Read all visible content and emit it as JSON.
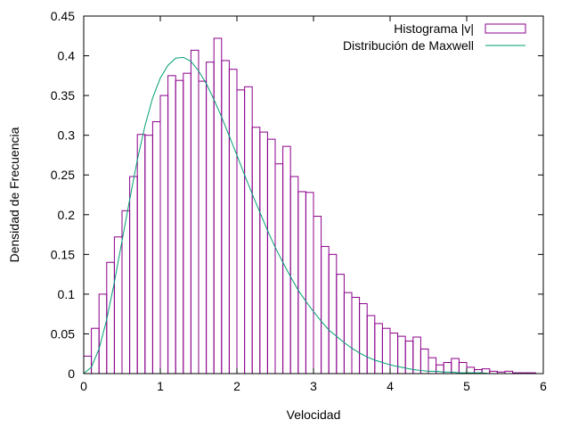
{
  "chart_data": {
    "type": "bar",
    "title": "",
    "xlabel": "Velocidad",
    "ylabel": "Densidad de Frecuencia",
    "xlim": [
      0,
      6
    ],
    "ylim": [
      0,
      0.45
    ],
    "xticks": [
      "0",
      "1",
      "2",
      "3",
      "4",
      "5",
      "6"
    ],
    "yticks": [
      "0",
      "0.05",
      "0.1",
      "0.15",
      "0.2",
      "0.25",
      "0.3",
      "0.35",
      "0.4",
      "0.45"
    ],
    "grid": false,
    "legend_position": "top-right",
    "bin_width": 0.1,
    "series": [
      {
        "name": "Histograma |v|",
        "type": "histogram",
        "color": "#8b008b",
        "bin_starts": [
          0.0,
          0.1,
          0.2,
          0.3,
          0.4,
          0.5,
          0.6,
          0.7,
          0.8,
          0.9,
          1.0,
          1.1,
          1.2,
          1.3,
          1.4,
          1.5,
          1.6,
          1.7,
          1.8,
          1.9,
          2.0,
          2.1,
          2.2,
          2.3,
          2.4,
          2.5,
          2.6,
          2.7,
          2.8,
          2.9,
          3.0,
          3.1,
          3.2,
          3.3,
          3.4,
          3.5,
          3.6,
          3.7,
          3.8,
          3.9,
          4.0,
          4.1,
          4.2,
          4.3,
          4.4,
          4.5,
          4.6,
          4.7,
          4.8,
          4.9,
          5.0,
          5.1,
          5.2,
          5.3,
          5.4,
          5.5,
          5.6,
          5.7,
          5.8
        ],
        "values": [
          0.022,
          0.057,
          0.1,
          0.14,
          0.172,
          0.205,
          0.248,
          0.301,
          0.3,
          0.317,
          0.35,
          0.375,
          0.369,
          0.378,
          0.407,
          0.368,
          0.392,
          0.422,
          0.394,
          0.383,
          0.357,
          0.361,
          0.31,
          0.304,
          0.295,
          0.264,
          0.286,
          0.248,
          0.229,
          0.228,
          0.198,
          0.16,
          0.15,
          0.125,
          0.102,
          0.096,
          0.088,
          0.073,
          0.063,
          0.057,
          0.051,
          0.047,
          0.041,
          0.046,
          0.031,
          0.02,
          0.011,
          0.014,
          0.019,
          0.014,
          0.008,
          0.005,
          0.006,
          0.003,
          0.002,
          0.003,
          0.001,
          0.001,
          0.001
        ]
      },
      {
        "name": "Distribución de Maxwell",
        "type": "line",
        "color": "#009e73",
        "x": [
          0.0,
          0.1,
          0.2,
          0.3,
          0.4,
          0.5,
          0.6,
          0.7,
          0.8,
          0.9,
          1.0,
          1.1,
          1.2,
          1.3,
          1.4,
          1.5,
          1.6,
          1.7,
          1.8,
          1.9,
          2.0,
          2.1,
          2.2,
          2.3,
          2.4,
          2.5,
          2.6,
          2.7,
          2.8,
          2.9,
          3.0,
          3.1,
          3.2,
          3.3,
          3.4,
          3.5,
          3.6,
          3.7,
          3.8,
          3.9,
          4.0,
          4.1,
          4.2,
          4.3,
          4.4,
          4.5,
          4.6,
          4.7,
          4.8,
          4.9,
          5.0,
          5.1,
          5.2,
          5.3,
          5.4,
          5.5,
          5.6,
          5.7,
          5.8,
          5.9
        ],
        "y": [
          0.0,
          0.008,
          0.031,
          0.068,
          0.115,
          0.167,
          0.219,
          0.269,
          0.312,
          0.347,
          0.372,
          0.388,
          0.397,
          0.398,
          0.393,
          0.381,
          0.365,
          0.345,
          0.323,
          0.299,
          0.275,
          0.25,
          0.226,
          0.203,
          0.18,
          0.159,
          0.14,
          0.122,
          0.105,
          0.091,
          0.078,
          0.066,
          0.055,
          0.047,
          0.039,
          0.032,
          0.026,
          0.021,
          0.017,
          0.014,
          0.011,
          0.009,
          0.007,
          0.005,
          0.004,
          0.003,
          0.003,
          0.002,
          0.002,
          0.001,
          0.001,
          0.001,
          0.001,
          0.0,
          0.0,
          0.0,
          0.0,
          0.0,
          0.0,
          0.0
        ]
      }
    ]
  }
}
